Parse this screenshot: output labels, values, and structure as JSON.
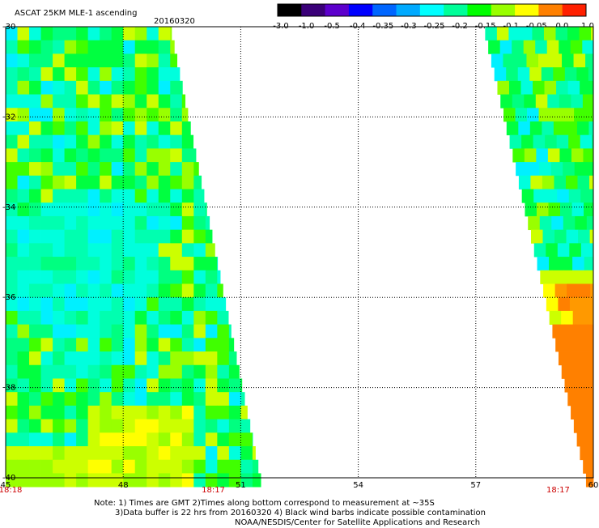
{
  "header": {
    "title": "ASCAT 25KM MLE-1 ascending",
    "date": "20160320"
  },
  "chart_data": {
    "type": "heatmap",
    "title": "ASCAT 25KM MLE-1 ascending",
    "xlim": [
      45,
      60
    ],
    "ylim": [
      -40,
      -30
    ],
    "x_ticks": [
      45,
      48,
      51,
      54,
      57,
      60
    ],
    "y_ticks": [
      -30,
      -32,
      -34,
      -36,
      -38,
      -40
    ],
    "grid": true,
    "time_labels": [
      {
        "x": 45,
        "label": "18:18"
      },
      {
        "x": 50.3,
        "label": "18:17"
      },
      {
        "x": 59.1,
        "label": "18:17"
      }
    ],
    "colorbar": {
      "ticks": [
        "-3.0",
        "-1.0",
        "-0.5",
        "-0.4",
        "-0.35",
        "-0.3",
        "-0.25",
        "-0.2",
        "-0.15",
        "-0.1",
        "-0.05",
        "0.0",
        "1.0"
      ],
      "colors": [
        "#000000",
        "#3a0078",
        "#5c00cc",
        "#0000ff",
        "#0066ff",
        "#00aaff",
        "#00ffff",
        "#00ff99",
        "#00ff00",
        "#99ff00",
        "#ffff00",
        "#ff8000",
        "#ff2000"
      ]
    },
    "swaths": [
      {
        "name": "west",
        "lon_min": 45.0,
        "lon_max_north": 49.2,
        "lon_max_south": 51.5
      },
      {
        "name": "east",
        "lon_min_north": 57.2,
        "lon_min_south": 59.8,
        "lon_max": 60.0
      }
    ]
  },
  "notes": {
    "line1": "Note: 1) Times are GMT 2)Times along bottom correspond to measurement at ~35S",
    "line2": "3)Data buffer is 22 hrs from 20160320 4) Black wind barbs indicate possible contamination",
    "line3": "NOAA/NESDIS/Center for Satellite Applications and Research"
  }
}
